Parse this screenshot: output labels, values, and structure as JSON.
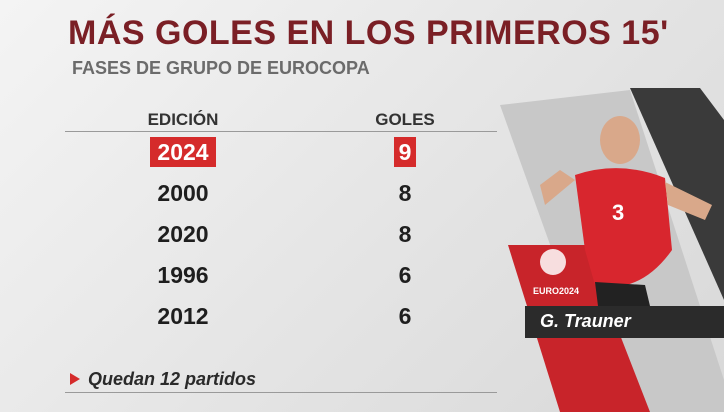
{
  "header": {
    "title": "MÁS GOLES EN LOS PRIMEROS 15'",
    "subtitle": "FASES DE GRUPO DE EUROCOPA"
  },
  "table": {
    "columns": [
      "EDICIÓN",
      "GOLES"
    ],
    "rows": [
      [
        "2024",
        9
      ],
      [
        "2000",
        8
      ],
      [
        "2020",
        8
      ],
      [
        "1996",
        6
      ],
      [
        "2012",
        6
      ]
    ]
  },
  "footer": {
    "note": "Quedan 12 partidos"
  },
  "player": {
    "name": "G. Trauner",
    "number": "3"
  },
  "logo": {
    "text": "EURO2024"
  }
}
